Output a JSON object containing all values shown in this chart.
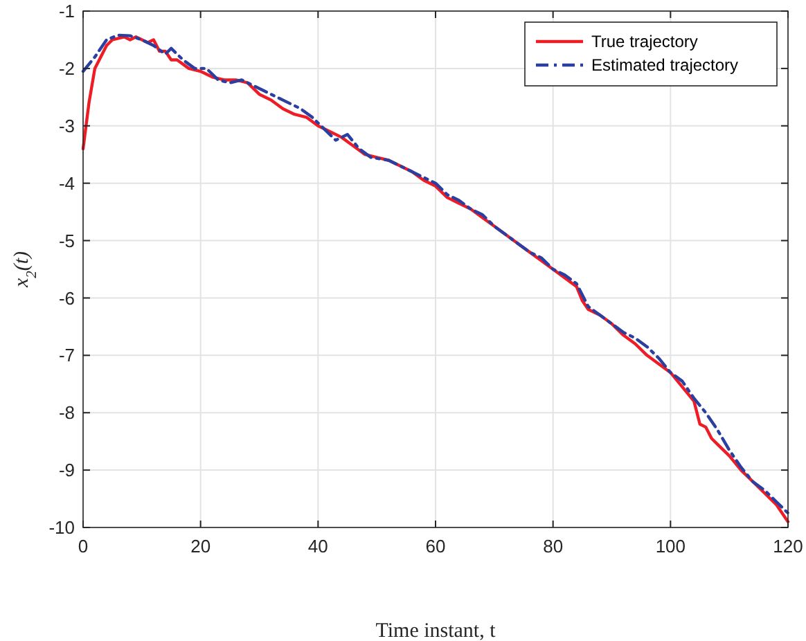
{
  "chart_data": {
    "type": "line",
    "xlabel": "Time instant, t",
    "ylabel": "x$_{2}$(t)",
    "xlim": [
      0,
      120
    ],
    "ylim": [
      -10,
      -1
    ],
    "xticks": [
      0,
      20,
      40,
      60,
      80,
      100,
      120
    ],
    "yticks": [
      -10,
      -9,
      -8,
      -7,
      -6,
      -5,
      -4,
      -3,
      -2,
      -1
    ],
    "grid": true,
    "legend": "top right",
    "marker": "none",
    "series": [
      {
        "name": "True trajectory",
        "color": "#ee1c25",
        "line_style": "solid",
        "x": [
          0,
          1,
          2,
          4,
          5,
          7,
          8,
          9,
          11,
          12,
          13,
          14,
          15,
          16,
          18,
          20,
          22,
          24,
          26,
          28,
          30,
          32,
          34,
          36,
          38,
          40,
          42,
          44,
          46,
          48,
          50,
          52,
          54,
          56,
          58,
          60,
          62,
          64,
          66,
          68,
          70,
          72,
          74,
          76,
          78,
          80,
          82,
          84,
          85,
          86,
          88,
          90,
          92,
          94,
          96,
          98,
          100,
          102,
          104,
          105,
          106,
          107,
          108,
          110,
          112,
          114,
          116,
          118,
          120
        ],
        "values": [
          -3.4,
          -2.6,
          -2.0,
          -1.6,
          -1.5,
          -1.45,
          -1.5,
          -1.45,
          -1.55,
          -1.5,
          -1.7,
          -1.7,
          -1.85,
          -1.85,
          -2.0,
          -2.05,
          -2.15,
          -2.2,
          -2.2,
          -2.25,
          -2.45,
          -2.55,
          -2.7,
          -2.8,
          -2.85,
          -3.0,
          -3.1,
          -3.2,
          -3.35,
          -3.5,
          -3.55,
          -3.6,
          -3.7,
          -3.8,
          -3.95,
          -4.05,
          -4.25,
          -4.35,
          -4.45,
          -4.6,
          -4.75,
          -4.9,
          -5.05,
          -5.2,
          -5.35,
          -5.5,
          -5.65,
          -5.8,
          -6.05,
          -6.2,
          -6.3,
          -6.45,
          -6.65,
          -6.8,
          -7.0,
          -7.15,
          -7.3,
          -7.55,
          -7.8,
          -8.2,
          -8.25,
          -8.45,
          -8.55,
          -8.75,
          -9.0,
          -9.2,
          -9.4,
          -9.6,
          -9.9
        ]
      },
      {
        "name": "Estimated trajectory",
        "color": "#2b3fa0",
        "line_style": "dashdot",
        "x": [
          0,
          2,
          4,
          6,
          8,
          10,
          12,
          14,
          15,
          17,
          19,
          21,
          23,
          25,
          27,
          29,
          31,
          33,
          35,
          37,
          39,
          41,
          43,
          45,
          47,
          49,
          52,
          55,
          58,
          60,
          62,
          64,
          66,
          68,
          70,
          72,
          74,
          76,
          78,
          80,
          82,
          84,
          86,
          88,
          90,
          92,
          94,
          96,
          98,
          100,
          102,
          104,
          106,
          108,
          110,
          112,
          114,
          116,
          118,
          120
        ],
        "values": [
          -2.05,
          -1.8,
          -1.5,
          -1.42,
          -1.43,
          -1.5,
          -1.6,
          -1.75,
          -1.65,
          -1.85,
          -2.0,
          -2.0,
          -2.2,
          -2.25,
          -2.2,
          -2.3,
          -2.4,
          -2.5,
          -2.6,
          -2.7,
          -2.85,
          -3.05,
          -3.25,
          -3.15,
          -3.4,
          -3.55,
          -3.6,
          -3.75,
          -3.9,
          -4.0,
          -4.2,
          -4.3,
          -4.45,
          -4.55,
          -4.75,
          -4.9,
          -5.05,
          -5.2,
          -5.3,
          -5.5,
          -5.6,
          -5.75,
          -6.15,
          -6.3,
          -6.45,
          -6.6,
          -6.7,
          -6.85,
          -7.05,
          -7.3,
          -7.45,
          -7.75,
          -8.0,
          -8.3,
          -8.65,
          -8.95,
          -9.2,
          -9.35,
          -9.55,
          -9.75
        ]
      }
    ]
  }
}
